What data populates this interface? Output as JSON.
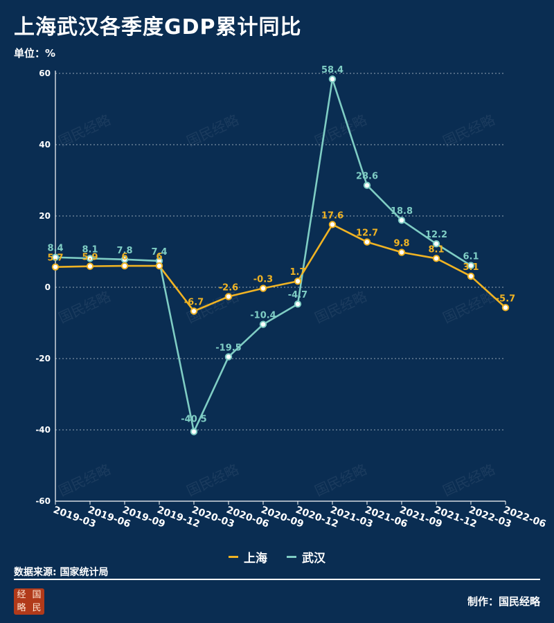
{
  "header": {
    "title": "上海武汉各季度GDP累计同比",
    "unit": "单位：%"
  },
  "footer": {
    "source": "数据来源: 国家统计局",
    "credit": "制作：国民经略",
    "logo_chars": [
      "经",
      "国",
      "略",
      "民"
    ],
    "watermark": "国民经略"
  },
  "colors": {
    "background": "#0a2d52",
    "shanghai": "#f0b323",
    "wuhan": "#7fcdc4",
    "axis": "#ffffff",
    "grid": "#b8c4d0"
  },
  "chart_data": {
    "type": "line",
    "title": "上海武汉各季度GDP累计同比",
    "ylabel": "单位：%",
    "xlabel": "",
    "ylim": [
      -60,
      60
    ],
    "yticks": [
      60,
      40,
      20,
      0,
      -20,
      -40,
      -60
    ],
    "grid": true,
    "legend_position": "bottom-center",
    "categories": [
      "2019-03",
      "2019-06",
      "2019-09",
      "2019-12",
      "2020-03",
      "2020-06",
      "2020-09",
      "2020-12",
      "2021-03",
      "2021-06",
      "2021-09",
      "2021-12",
      "2022-03",
      "2022-06"
    ],
    "series": [
      {
        "name": "上海",
        "color": "#f0b323",
        "values": [
          5.7,
          5.9,
          6,
          6,
          -6.7,
          -2.6,
          -0.3,
          1.7,
          17.6,
          12.7,
          9.8,
          8.1,
          3.1,
          -5.7
        ]
      },
      {
        "name": "武汉",
        "color": "#7fcdc4",
        "values": [
          8.4,
          8.1,
          7.8,
          7.4,
          -40.5,
          -19.5,
          -10.4,
          -4.7,
          58.4,
          28.6,
          18.8,
          12.2,
          6.1,
          null
        ]
      }
    ]
  }
}
